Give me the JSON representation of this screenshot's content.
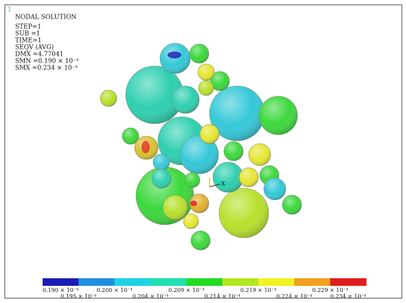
{
  "corner_label": "1",
  "info": {
    "lines": [
      "NODAL SOLUTION",
      "STEP=1",
      "SUB =1",
      "TIME=1",
      "SEQV       (AVG)",
      "DMX =4.77041",
      "SMN =0.190 × 10⁻⁴",
      "SMX =0.234 × 10⁻⁴"
    ]
  },
  "triad_label": "X",
  "legend": {
    "colors": [
      "#1c1cb4",
      "#1e90e0",
      "#1ed2e6",
      "#1ee0b0",
      "#22dc22",
      "#b4e61e",
      "#f2f222",
      "#f2a01e",
      "#e01e1e"
    ],
    "labels": [
      "0.190 × 10⁻⁴",
      "0.195 × 10⁻⁴",
      "0.200 × 10⁻⁴",
      "0.204 × 10⁻⁴",
      "0.209 × 10⁻⁴",
      "0.214 × 10⁻⁴",
      "0.219 × 10⁻⁴",
      "0.224 × 10⁻⁴",
      "0.229 × 10⁻⁴",
      "0.234 × 10⁻⁴"
    ]
  }
}
